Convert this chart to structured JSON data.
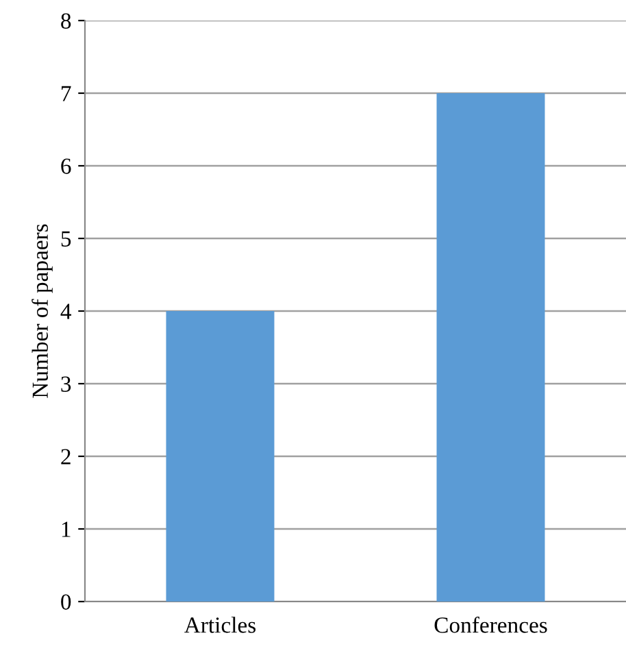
{
  "chart_data": {
    "type": "bar",
    "ylabel": "Number of papaers",
    "categories": [
      "Articles",
      "Conferences"
    ],
    "values": [
      4,
      7
    ],
    "color": "#5b9bd5",
    "ylim": [
      0,
      8
    ],
    "yticks": [
      0,
      1,
      2,
      3,
      4,
      5,
      6,
      7,
      8
    ],
    "grid": "y",
    "legend": false
  }
}
